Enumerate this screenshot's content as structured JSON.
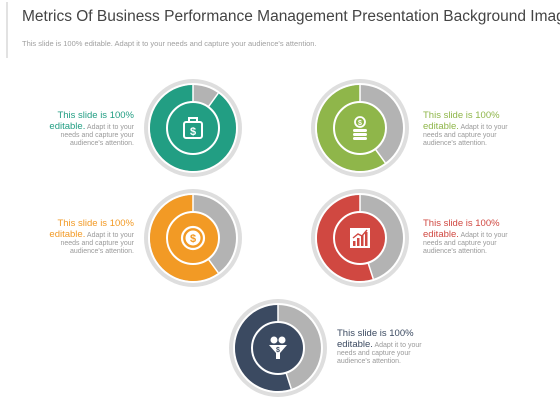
{
  "header": {
    "title": "Metrics Of Business Performance Management Presentation Background Images",
    "subtitle": "This slide is 100% editable. Adapt it to your needs and capture your audience's attention."
  },
  "metrics": [
    {
      "id": "teal",
      "color": "#229e83",
      "fill_fraction": 0.9,
      "icon": "money-bag-icon",
      "caption_head": "This slide is 100%",
      "caption_lead": "editable.",
      "caption_tail": " Adapt it to your",
      "caption_lines": [
        "needs and capture your",
        "audience's attention."
      ]
    },
    {
      "id": "green",
      "color": "#8fb64a",
      "fill_fraction": 0.6,
      "icon": "coin-stack-icon",
      "caption_head": "This slide is 100%",
      "caption_lead": "editable.",
      "caption_tail": " Adapt it to your",
      "caption_lines": [
        "needs and capture your",
        "audience's attention."
      ]
    },
    {
      "id": "orange",
      "color": "#f29a25",
      "fill_fraction": 0.6,
      "icon": "dollar-coin-icon",
      "caption_head": "This slide is 100%",
      "caption_lead": "editable.",
      "caption_tail": " Adapt it to your",
      "caption_lines": [
        "needs and capture your",
        "audience's attention."
      ]
    },
    {
      "id": "red",
      "color": "#d04841",
      "fill_fraction": 0.55,
      "icon": "growth-chart-icon",
      "caption_head": "This slide is 100%",
      "caption_lead": "editable.",
      "caption_tail": " Adapt it to your",
      "caption_lines": [
        "needs and capture your",
        "audience's attention."
      ]
    },
    {
      "id": "navy",
      "color": "#3b4a61",
      "fill_fraction": 0.55,
      "icon": "money-funnel-icon",
      "caption_head": "This slide is 100%",
      "caption_lead": "editable.",
      "caption_tail": " Adapt it to your",
      "caption_lines": [
        "needs and capture your",
        "audience's attention."
      ]
    }
  ],
  "colors": {
    "ring": "#dedede",
    "remainder": "#b3b3b3"
  }
}
